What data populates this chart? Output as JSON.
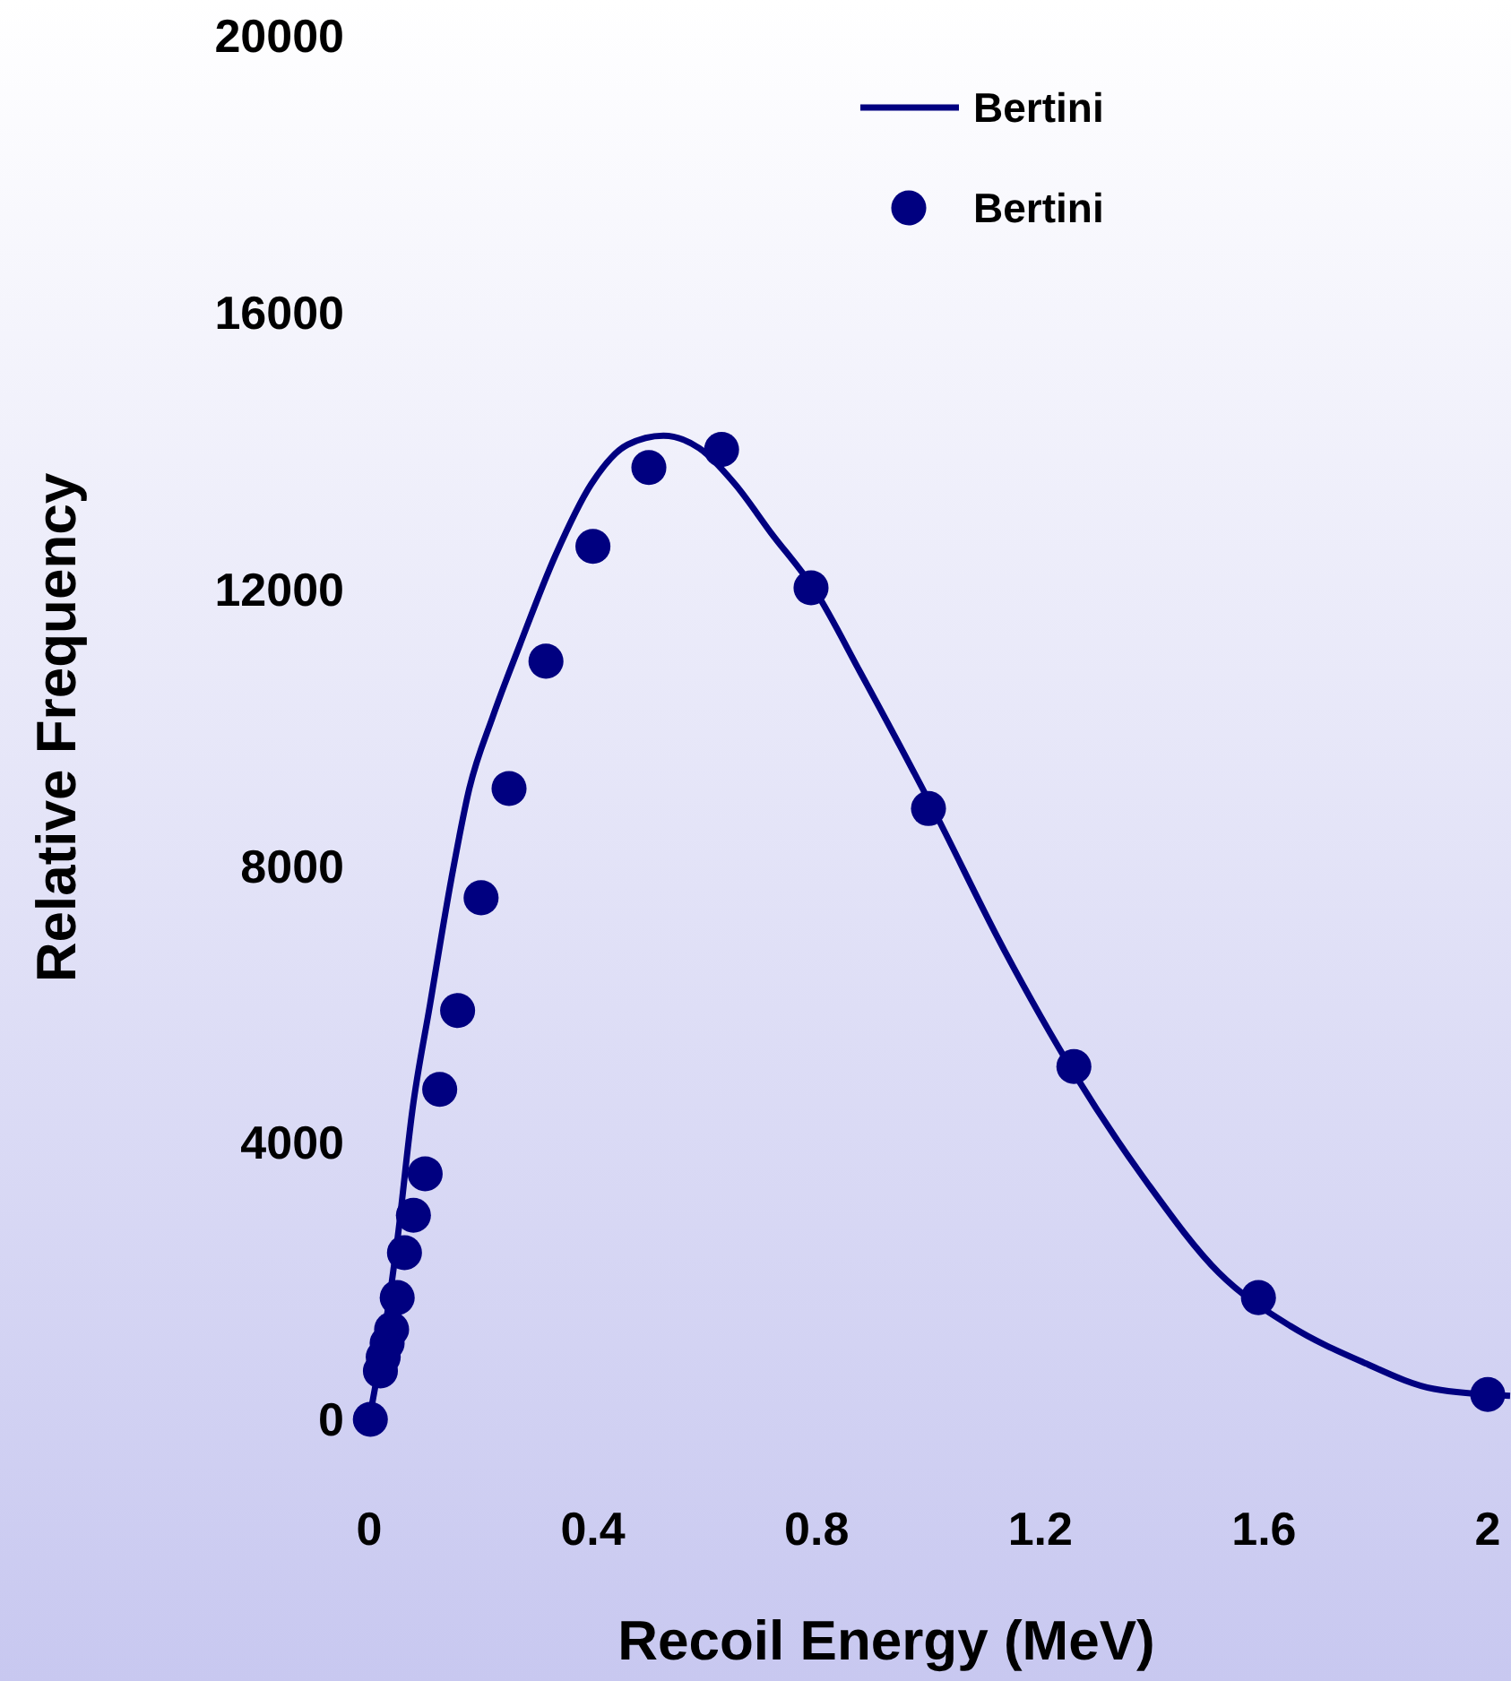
{
  "chart_data": {
    "type": "line",
    "xlabel": "Recoil Energy (MeV)",
    "ylabel": "Relative Frequency",
    "xlim": [
      0,
      2.04
    ],
    "ylim": [
      0,
      20000
    ],
    "xticks": [
      0,
      0.4,
      0.8,
      1.2,
      1.6,
      2
    ],
    "yticks": [
      0,
      4000,
      8000,
      12000,
      16000,
      20000
    ],
    "grid": false,
    "legend": "top right",
    "series": [
      {
        "name": "Bertini",
        "color": "#000080",
        "line_style": "solid",
        "x": [
          0,
          0.029,
          0.051,
          0.077,
          0.109,
          0.147,
          0.179,
          0.221,
          0.269,
          0.333,
          0.397,
          0.462,
          0.526,
          0.59,
          0.654,
          0.718,
          0.798,
          0.878,
          1.006,
          1.135,
          1.263,
          1.391,
          1.519,
          1.647,
          1.776,
          1.904,
          2.04
        ],
        "values": [
          0,
          1350,
          2640,
          4460,
          6010,
          7820,
          9120,
          10160,
          11190,
          12490,
          13520,
          14090,
          14220,
          14040,
          13520,
          12820,
          11970,
          10800,
          8860,
          6790,
          4970,
          3420,
          2120,
          1350,
          830,
          440,
          340
        ]
      },
      {
        "name": "Bertini",
        "type": "scatter",
        "color": "#000080",
        "marker": "circle",
        "x": [
          0.002,
          0.02,
          0.025,
          0.032,
          0.04,
          0.05,
          0.063,
          0.079,
          0.1,
          0.126,
          0.158,
          0.2,
          0.25,
          0.316,
          0.4,
          0.5,
          0.63,
          0.79,
          1.0,
          1.26,
          1.59,
          2.0
        ],
        "values": [
          0,
          700,
          900,
          1100,
          1300,
          1760,
          2410,
          2950,
          3550,
          4770,
          5910,
          7540,
          9120,
          10960,
          12620,
          13760,
          14020,
          12020,
          8830,
          5100,
          1760,
          360
        ]
      }
    ]
  }
}
